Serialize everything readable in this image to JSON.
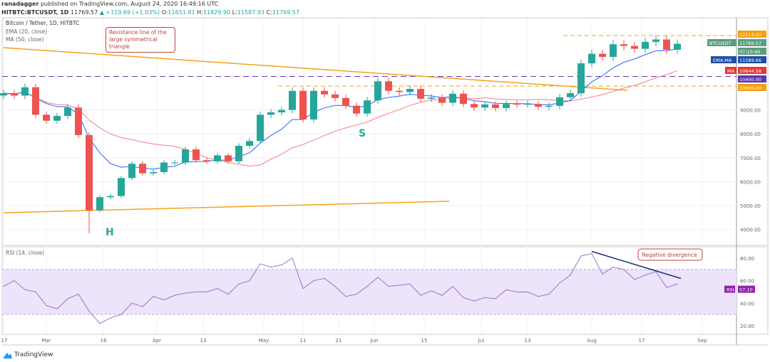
{
  "header": {
    "publisher": "ranadagger",
    "published_text": "published on TradingView.com, August 24, 2020 16:49:16 UTC",
    "symbol": "HITBTC:BTCUSDT, 1D",
    "last": "11769.57",
    "change": "+119.69 (+1.03%)",
    "o_label": "O:",
    "o": "11651.81",
    "h_label": "H:",
    "h": "11829.90",
    "l_label": "L:",
    "l": "11587.93",
    "c_label": "C:",
    "c": "11769.57"
  },
  "logo": "TradingView",
  "colors": {
    "up": "#26a69a",
    "down": "#ef5350",
    "ema": "#2962ff",
    "ma": "#f77c80",
    "rsi": "#9575cd",
    "resistance": "#f7a21b",
    "purple_line": "#673ab7",
    "rsi_trend": "#1e2a78",
    "annotation": "#b7473c"
  },
  "chart_data": [
    {
      "type": "candlestick",
      "title": "Bitcoin / Tether, 1D, HITBTC",
      "indicators": [
        "EMA (20, close)",
        "MA (50, close)"
      ],
      "dates": [
        "Feb 17",
        "Feb 20",
        "Feb 23",
        "Feb 26",
        "Feb 29",
        "Mar 3",
        "Mar 6",
        "Mar 9",
        "Mar 12",
        "Mar 15",
        "Mar 18",
        "Mar 21",
        "Mar 24",
        "Mar 27",
        "Mar 30",
        "Apr 2",
        "Apr 5",
        "Apr 8",
        "Apr 11",
        "Apr 14",
        "Apr 17",
        "Apr 20",
        "Apr 23",
        "Apr 26",
        "Apr 29",
        "May 2",
        "May 5",
        "May 8",
        "May 11",
        "May 14",
        "May 17",
        "May 20",
        "May 23",
        "May 26",
        "May 29",
        "Jun 1",
        "Jun 4",
        "Jun 7",
        "Jun 10",
        "Jun 13",
        "Jun 16",
        "Jun 19",
        "Jun 22",
        "Jun 25",
        "Jun 28",
        "Jul 1",
        "Jul 4",
        "Jul 7",
        "Jul 10",
        "Jul 13",
        "Jul 16",
        "Jul 19",
        "Jul 22",
        "Jul 25",
        "Jul 28",
        "Jul 31",
        "Aug 3",
        "Aug 6",
        "Aug 9",
        "Aug 12",
        "Aug 15",
        "Aug 18",
        "Aug 21",
        "Aug 24"
      ],
      "close": [
        9700,
        9600,
        9950,
        8800,
        8550,
        8750,
        9100,
        7950,
        4800,
        5350,
        5400,
        6150,
        6750,
        6350,
        6400,
        6800,
        6800,
        7350,
        6900,
        6850,
        7100,
        6850,
        7500,
        7700,
        8800,
        8900,
        9000,
        9800,
        8600,
        9800,
        9650,
        9500,
        9180,
        8850,
        9400,
        10200,
        9800,
        9750,
        9880,
        9470,
        9520,
        9300,
        9680,
        9250,
        9100,
        9230,
        9080,
        9250,
        9230,
        9250,
        9130,
        9170,
        9530,
        9700,
        10950,
        11350,
        11220,
        11750,
        11680,
        11560,
        11850,
        11950,
        11520,
        11769.57
      ],
      "x_ticks": [
        "17",
        "Mar",
        "16",
        "Apr",
        "13",
        "May",
        "11",
        "21",
        "Jun",
        "15",
        "Jul",
        "13",
        "Aug",
        "17",
        "Sep"
      ],
      "y_ticks": [
        "4000.00",
        "5000.00",
        "6000.00",
        "7000.00",
        "8000.00",
        "9000.00"
      ],
      "ylim": [
        3100,
        12800
      ],
      "price_labels": [
        {
          "name": "",
          "value": "12113.50",
          "color": "#f59e0b"
        },
        {
          "name": "BTCUSDT",
          "value": "11769.57",
          "color": "#5a9e7e"
        },
        {
          "name": "",
          "value": "07:10:46",
          "color": "#5a9e7e"
        },
        {
          "name": "EMA:MA",
          "value": "11589.66",
          "color": "#1e4fa3"
        },
        {
          "name": "MA",
          "value": "10644.58",
          "color": "#e53935"
        },
        {
          "name": "",
          "value": "10400.00",
          "color": "#5e35b1"
        },
        {
          "name": "",
          "value": "10000.00",
          "color": "#f59e0b"
        }
      ],
      "levels": {
        "resistance_dashed": [
          10000,
          12113.5
        ],
        "purple_dashed": 10400
      },
      "trendlines": {
        "resistance": {
          "from": [
            "Feb 17",
            11607
          ],
          "to": [
            "Aug 10",
            9820
          ]
        },
        "support": {
          "from": [
            "Feb 17",
            4700
          ],
          "to": [
            "Jun 21",
            5180
          ]
        }
      },
      "annotations": {
        "callout": "Resistance line of the large symmetrical triangle",
        "head": "H",
        "shoulder": "S"
      }
    },
    {
      "type": "line",
      "title": "RSI (14, close)",
      "values": [
        55,
        60,
        52,
        50,
        38,
        35,
        44,
        48,
        33,
        22,
        27,
        30,
        40,
        37,
        46,
        43,
        47,
        49,
        50,
        50,
        53,
        48,
        57,
        60,
        75,
        72,
        74,
        80,
        53,
        60,
        62,
        55,
        46,
        48,
        55,
        63,
        55,
        56,
        57,
        47,
        51,
        47,
        55,
        45,
        42,
        45,
        44,
        52,
        50,
        50,
        46,
        48,
        58,
        65,
        82,
        84,
        66,
        72,
        70,
        61,
        65,
        68,
        54,
        57.1
      ],
      "y_ticks": [
        "20.00",
        "40.00",
        "60.00",
        "80.00"
      ],
      "band": [
        30,
        70
      ],
      "ylim": [
        12,
        90
      ],
      "last_label": {
        "name": "RSI",
        "value": "57.10"
      },
      "trendline": {
        "from": [
          "Jul 31",
          86
        ],
        "to": [
          "Aug 25",
          62
        ]
      },
      "annotations": {
        "callout": "Negative divergence"
      }
    }
  ]
}
